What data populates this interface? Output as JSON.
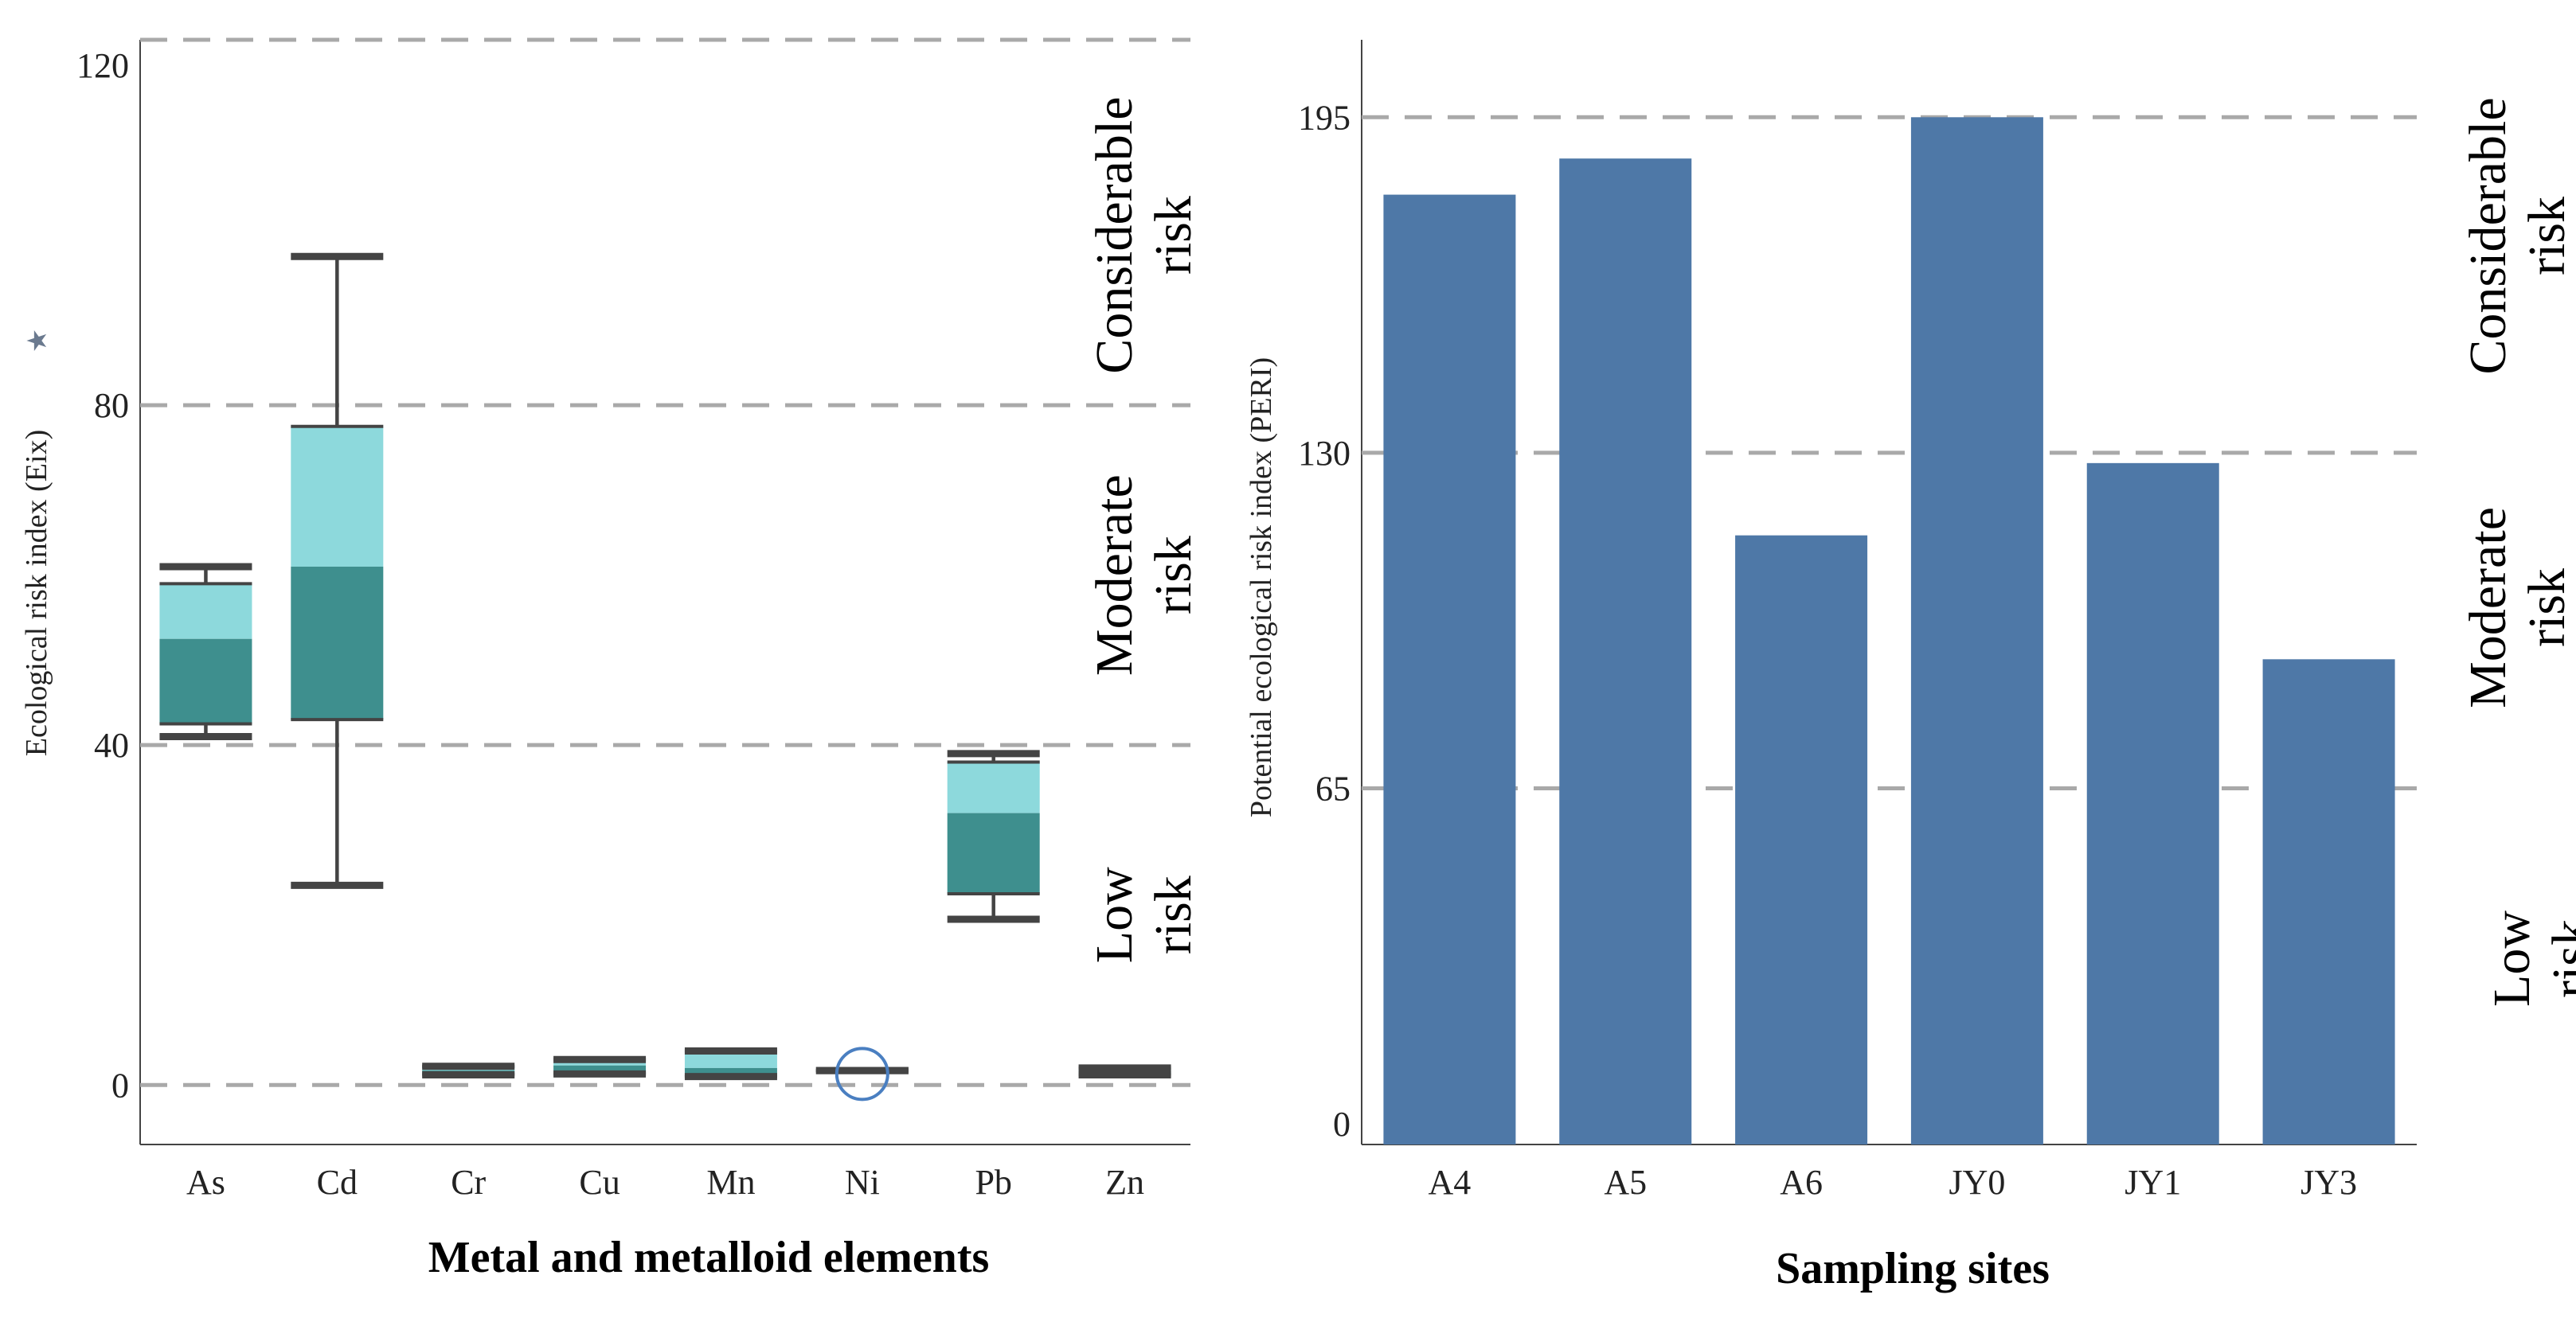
{
  "colors": {
    "box_lower": "#3e8f8e",
    "box_upper": "#8dd9dc",
    "bar": "#4e78a7",
    "ref_line": "#a9a9a9",
    "outlier_circle": "#4a7fc1",
    "star": "#6b7a8f"
  },
  "chart_data": [
    {
      "type": "box",
      "title": "",
      "xlabel": "Metal and metalloid elements",
      "ylabel": "Ecological risk index (Eix)",
      "ylabel_marker": "★",
      "ylim": [
        -7,
        123
      ],
      "yticks": [
        0,
        40,
        80,
        120
      ],
      "grid": false,
      "categories": [
        "As",
        "Cd",
        "Cr",
        "Cu",
        "Mn",
        "Ni",
        "Pb",
        "Zn"
      ],
      "boxes": [
        {
          "name": "As",
          "min": 41,
          "q1": 42.5,
          "median": 52.5,
          "q3": 59,
          "max": 61
        },
        {
          "name": "Cd",
          "min": 23.5,
          "q1": 43,
          "median": 61,
          "q3": 77.5,
          "max": 97.5
        },
        {
          "name": "Cr",
          "min": 1.2,
          "q1": 1.2,
          "median": 1.7,
          "q3": 2.2,
          "max": 2.2
        },
        {
          "name": "Cu",
          "min": 1.3,
          "q1": 1.3,
          "median": 2.3,
          "q3": 3.0,
          "max": 3.0
        },
        {
          "name": "Mn",
          "min": 1.0,
          "q1": 1.0,
          "median": 2.0,
          "q3": 4.0,
          "max": 4.0
        },
        {
          "name": "Ni",
          "min": 1.7,
          "q1": 1.7,
          "median": 1.7,
          "q3": 1.7,
          "max": 1.7,
          "outlier": 1.3
        },
        {
          "name": "Pb",
          "min": 19.5,
          "q1": 22.5,
          "median": 32,
          "q3": 38,
          "max": 39
        },
        {
          "name": "Zn",
          "min": 1.2,
          "q1": 1.2,
          "median": 1.6,
          "q3": 2.0,
          "max": 2.0
        }
      ],
      "reference_lines": [
        0,
        40,
        80,
        123
      ],
      "zones": [
        {
          "label": "Low risk",
          "from": 0,
          "to": 40
        },
        {
          "label": "Moderate risk",
          "from": 40,
          "to": 80
        },
        {
          "label": "Considerable risk",
          "from": 80,
          "to": 120
        }
      ]
    },
    {
      "type": "bar",
      "title": "",
      "xlabel": "Sampling sites",
      "ylabel": "Potential ecological risk index (PERI)",
      "ylim": [
        -4,
        210
      ],
      "yticks": [
        0,
        65,
        130,
        195
      ],
      "grid": false,
      "categories": [
        "A4",
        "A5",
        "A6",
        "JY0",
        "JY1",
        "JY3"
      ],
      "values": [
        180,
        187,
        114,
        195,
        128,
        90
      ],
      "reference_lines": [
        65,
        130,
        195
      ],
      "zones": [
        {
          "label": "Low risk",
          "from": 0,
          "to": 65
        },
        {
          "label": "Moderate risk",
          "from": 65,
          "to": 130
        },
        {
          "label": "Considerable risk",
          "from": 130,
          "to": 195
        }
      ]
    }
  ]
}
